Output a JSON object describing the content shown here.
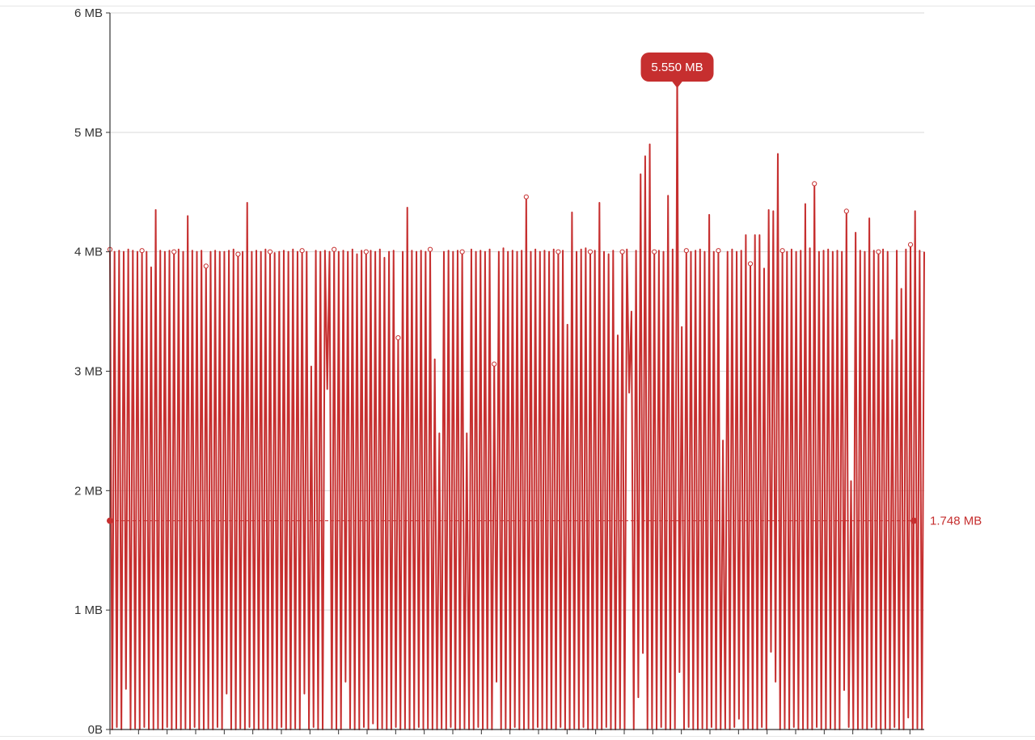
{
  "colors": {
    "series": "#c62f2f",
    "axis": "#333333",
    "grid": "#d9d9d9",
    "label": "#333333",
    "background": "#ffffff"
  },
  "chart_data": {
    "type": "line",
    "title": "",
    "xlabel": "",
    "ylabel": "",
    "ylim": [
      0,
      6
    ],
    "y_ticks": [
      {
        "value": 0,
        "label": "0B"
      },
      {
        "value": 1,
        "label": "1 MB"
      },
      {
        "value": 2,
        "label": "2 MB"
      },
      {
        "value": 3,
        "label": "3 MB"
      },
      {
        "value": 4,
        "label": "4 MB"
      },
      {
        "value": 5,
        "label": "5 MB"
      },
      {
        "value": 6,
        "label": "6 MB"
      }
    ],
    "x_tick_count": 29,
    "grid": true,
    "legend": "none",
    "series": [
      {
        "values": [
          4.02,
          0.0,
          4.0,
          0.02,
          4.01,
          0.0,
          4.0,
          0.34,
          4.02,
          0.0,
          4.01,
          0.01,
          4.0,
          0.0,
          4.01,
          0.02,
          4.0,
          0.0,
          3.87,
          0.0,
          4.35,
          0.01,
          4.01,
          0.0,
          4.0,
          0.02,
          4.01,
          0.0,
          4.0,
          0.01,
          4.02,
          0.0,
          4.0,
          0.01,
          4.3,
          0.0,
          4.01,
          0.02,
          4.0,
          0.0,
          4.01,
          0.0,
          3.88,
          0.01,
          4.0,
          0.0,
          4.01,
          0.02,
          4.0,
          0.0,
          4.0,
          0.3,
          4.01,
          0.0,
          4.02,
          0.0,
          3.98,
          0.01,
          4.0,
          0.0,
          4.41,
          0.02,
          4.0,
          0.0,
          4.01,
          0.0,
          4.0,
          0.01,
          4.02,
          0.0,
          4.0,
          0.01,
          3.99,
          0.0,
          4.0,
          0.02,
          4.01,
          0.0,
          4.0,
          0.0,
          4.02,
          0.01,
          4.0,
          0.0,
          4.01,
          0.3,
          4.0,
          0.0,
          3.04,
          0.02,
          4.01,
          0.0,
          4.0,
          0.0,
          4.01,
          2.85,
          4.0,
          0.01,
          4.02,
          0.0,
          4.0,
          0.0,
          4.01,
          0.4,
          4.0,
          0.01,
          4.02,
          0.0,
          3.98,
          0.0,
          4.01,
          0.02,
          4.0,
          0.0,
          4.01,
          0.05,
          4.0,
          0.0,
          4.02,
          0.01,
          3.95,
          0.0,
          4.0,
          0.0,
          4.01,
          0.02,
          3.28,
          0.0,
          4.0,
          0.01,
          4.37,
          0.0,
          4.01,
          0.0,
          4.0,
          0.02,
          4.01,
          0.0,
          4.0,
          0.01,
          4.02,
          0.0,
          3.1,
          0.0,
          2.48,
          0.01,
          4.0,
          0.0,
          4.01,
          0.02,
          4.0,
          0.0,
          4.01,
          0.0,
          4.0,
          0.01,
          2.48,
          0.0,
          4.02,
          0.0,
          4.0,
          0.02,
          4.01,
          0.0,
          4.0,
          0.01,
          4.02,
          0.0,
          3.06,
          0.4,
          4.0,
          0.0,
          4.03,
          0.01,
          4.0,
          0.0,
          4.01,
          0.02,
          4.0,
          0.0,
          4.01,
          0.0,
          4.46,
          0.01,
          4.0,
          0.0,
          4.02,
          0.02,
          4.0,
          0.0,
          4.01,
          0.0,
          4.0,
          0.01,
          4.02,
          0.0,
          4.0,
          0.02,
          4.01,
          0.0,
          3.39,
          0.0,
          4.33,
          0.01,
          4.0,
          0.0,
          4.02,
          0.02,
          4.03,
          0.0,
          4.0,
          0.0,
          4.01,
          0.01,
          4.41,
          0.0,
          4.0,
          0.02,
          3.98,
          0.0,
          4.01,
          0.0,
          3.3,
          0.01,
          4.0,
          0.0,
          4.02,
          2.82,
          3.5,
          0.0,
          4.01,
          0.27,
          4.65,
          0.64,
          4.8,
          0.0,
          4.9,
          0.01,
          4.0,
          0.0,
          4.01,
          0.02,
          4.0,
          0.0,
          4.47,
          0.0,
          4.02,
          0.01,
          5.55,
          0.48,
          3.37,
          0.0,
          4.01,
          0.02,
          4.0,
          0.0,
          4.01,
          0.0,
          4.02,
          0.01,
          4.0,
          0.0,
          4.31,
          0.02,
          4.0,
          0.0,
          4.01,
          0.0,
          2.42,
          0.01,
          4.0,
          0.0,
          4.02,
          0.02,
          4.0,
          0.09,
          4.01,
          0.0,
          4.14,
          0.01,
          3.9,
          0.0,
          4.14,
          0.0,
          4.14,
          0.02,
          3.86,
          0.0,
          4.35,
          0.65,
          4.34,
          0.4,
          4.82,
          0.0,
          4.01,
          0.01,
          4.0,
          0.0,
          4.02,
          0.02,
          4.0,
          0.0,
          4.01,
          0.0,
          4.4,
          0.01,
          4.03,
          0.0,
          4.57,
          0.02,
          4.0,
          0.0,
          4.01,
          0.0,
          4.02,
          0.01,
          4.0,
          0.0,
          4.01,
          0.0,
          4.0,
          0.33,
          4.34,
          0.02,
          2.08,
          0.0,
          4.16,
          0.0,
          4.01,
          0.01,
          4.0,
          0.0,
          4.28,
          0.02,
          4.01,
          0.0,
          4.0,
          0.0,
          4.02,
          0.01,
          4.0,
          0.0,
          3.26,
          0.02,
          4.01,
          0.0,
          3.69,
          0.0,
          4.02,
          0.1,
          4.06,
          0.0,
          4.34,
          0.01,
          4.01,
          0.0,
          4.0
        ]
      }
    ],
    "annotations": {
      "max": {
        "value": 5.55,
        "label": "5.550 MB"
      },
      "average": {
        "value": 1.748,
        "label": "1.748 MB"
      }
    }
  }
}
